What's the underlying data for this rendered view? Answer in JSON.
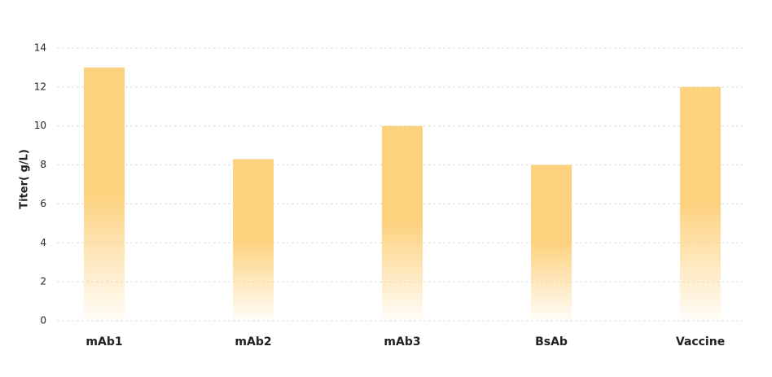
{
  "chart_data": {
    "type": "bar",
    "y_label": "Titer( g/L)",
    "categories": [
      "mAb1",
      "mAb2",
      "mAb3",
      "BsAb",
      "Vaccine"
    ],
    "values": [
      13,
      8.3,
      10,
      8,
      12
    ],
    "color": "#fdd27f",
    "ylim": [
      0,
      14
    ],
    "yticks": [
      0,
      2,
      4,
      6,
      8,
      10,
      12,
      14
    ],
    "grid": true
  }
}
